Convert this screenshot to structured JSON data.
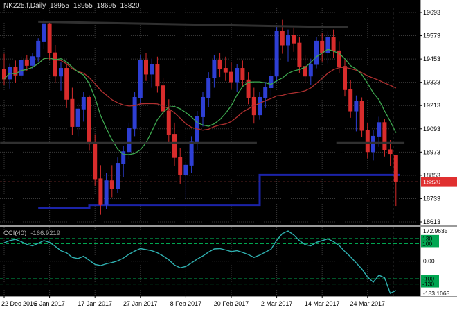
{
  "window": {
    "quote": {
      "symbol_period": "NK225.f,Daily",
      "open": "18955",
      "high": "18955",
      "low": "18695",
      "close": "18820"
    }
  },
  "indicator": {
    "name_label": "CCI(40)",
    "value_label": "-166.9219"
  },
  "colors": {
    "pane_bg": "#000000",
    "axis_bg": "#ffffff",
    "axis_text": "#000000",
    "grid": "#3a3a3a",
    "bull": "#2e3fd4",
    "bear": "#d82c2c",
    "ma_fast": "#3da84f",
    "ma_slow": "#b03030",
    "step_line": "#1b23a8",
    "trendline": "#303030",
    "cci_line": "#2fb0b0",
    "level_green": "#00a651",
    "price_tag_bg": "#e03030",
    "price_tag_text": "#ffffff",
    "separator": "#9a9a9a",
    "period_separator": "#7a7a7a",
    "bid_line": "#7a2e2e"
  },
  "price_axis": {
    "labels": [
      "19693",
      "19573",
      "19453",
      "19333",
      "19213",
      "19093",
      "18973",
      "18853",
      "18733",
      "18613"
    ],
    "current_price_label": "18820"
  },
  "time_axis": {
    "ticks": [
      {
        "bar": 0,
        "label": "22 Dec 2016"
      },
      {
        "bar": 8,
        "label": "5 Jan 2017"
      },
      {
        "bar": 16,
        "label": "17 Jan 2017"
      },
      {
        "bar": 24,
        "label": "27 Jan 2017"
      },
      {
        "bar": 32,
        "label": "8 Feb 2017"
      },
      {
        "bar": 40,
        "label": "20 Feb 2017"
      },
      {
        "bar": 48,
        "label": "2 Mar 2017"
      },
      {
        "bar": 56,
        "label": "14 Mar 2017"
      },
      {
        "bar": 64,
        "label": "24 Mar 2017"
      }
    ]
  },
  "cci_axis": {
    "max": "172.9635",
    "zero": "0.00",
    "min": "-183.1065",
    "level_labels": [
      {
        "value": 130,
        "label": "130"
      },
      {
        "value": 100,
        "label": "100"
      },
      {
        "value": -100,
        "label": "-100"
      },
      {
        "value": -130,
        "label": "-130"
      }
    ]
  },
  "chart_data": {
    "type": "candlestick",
    "title": "NK225.f Daily candlestick chart with two moving averages, step support line and CCI(40) indicator pane",
    "price_range": [
      18613,
      19693
    ],
    "candles": [
      [
        19400,
        19480,
        19320,
        19350
      ],
      [
        19350,
        19430,
        19300,
        19410
      ],
      [
        19410,
        19445,
        19330,
        19370
      ],
      [
        19370,
        19465,
        19345,
        19445
      ],
      [
        19445,
        19475,
        19390,
        19420
      ],
      [
        19420,
        19485,
        19400,
        19465
      ],
      [
        19465,
        19560,
        19440,
        19545
      ],
      [
        19545,
        19655,
        19505,
        19635
      ],
      [
        19635,
        19650,
        19450,
        19485
      ],
      [
        19485,
        19525,
        19330,
        19365
      ],
      [
        19365,
        19435,
        19290,
        19405
      ],
      [
        19405,
        19425,
        19200,
        19245
      ],
      [
        19245,
        19305,
        19060,
        19105
      ],
      [
        19105,
        19225,
        19055,
        19195
      ],
      [
        19195,
        19285,
        19130,
        19255
      ],
      [
        19255,
        19265,
        18980,
        19015
      ],
      [
        19015,
        19065,
        18800,
        18835
      ],
      [
        18835,
        18905,
        18650,
        18705
      ],
      [
        18705,
        18865,
        18680,
        18825
      ],
      [
        18825,
        18905,
        18740,
        18785
      ],
      [
        18785,
        18945,
        18760,
        18915
      ],
      [
        18915,
        19005,
        18845,
        18975
      ],
      [
        18975,
        19125,
        18935,
        19095
      ],
      [
        19095,
        19285,
        19055,
        19255
      ],
      [
        19255,
        19475,
        19215,
        19445
      ],
      [
        19445,
        19485,
        19340,
        19375
      ],
      [
        19375,
        19455,
        19305,
        19425
      ],
      [
        19425,
        19465,
        19280,
        19315
      ],
      [
        19315,
        19355,
        19150,
        19185
      ],
      [
        19185,
        19245,
        19020,
        19065
      ],
      [
        19065,
        19125,
        18900,
        18945
      ],
      [
        18945,
        18995,
        18810,
        18855
      ],
      [
        18855,
        18925,
        18730,
        18905
      ],
      [
        18905,
        19055,
        18865,
        19025
      ],
      [
        19025,
        19185,
        18985,
        19155
      ],
      [
        19155,
        19285,
        19105,
        19255
      ],
      [
        19255,
        19385,
        19205,
        19355
      ],
      [
        19355,
        19475,
        19305,
        19445
      ],
      [
        19445,
        19485,
        19360,
        19405
      ],
      [
        19405,
        19465,
        19340,
        19385
      ],
      [
        19385,
        19435,
        19300,
        19335
      ],
      [
        19335,
        19425,
        19285,
        19405
      ],
      [
        19405,
        19445,
        19310,
        19345
      ],
      [
        19345,
        19385,
        19220,
        19255
      ],
      [
        19255,
        19305,
        19120,
        19165
      ],
      [
        19165,
        19285,
        19140,
        19255
      ],
      [
        19255,
        19335,
        19200,
        19305
      ],
      [
        19305,
        19395,
        19260,
        19365
      ],
      [
        19365,
        19625,
        19335,
        19595
      ],
      [
        19595,
        19655,
        19480,
        19525
      ],
      [
        19525,
        19605,
        19440,
        19575
      ],
      [
        19575,
        19615,
        19490,
        19535
      ],
      [
        19535,
        19565,
        19380,
        19415
      ],
      [
        19415,
        19475,
        19330,
        19365
      ],
      [
        19365,
        19455,
        19320,
        19425
      ],
      [
        19425,
        19565,
        19405,
        19545
      ],
      [
        19545,
        19585,
        19440,
        19485
      ],
      [
        19485,
        19595,
        19430,
        19565
      ],
      [
        19565,
        19605,
        19460,
        19495
      ],
      [
        19495,
        19545,
        19380,
        19415
      ],
      [
        19415,
        19455,
        19260,
        19295
      ],
      [
        19295,
        19345,
        19150,
        19185
      ],
      [
        19185,
        19265,
        19080,
        19235
      ],
      [
        19235,
        19255,
        19050,
        19085
      ],
      [
        19085,
        19125,
        18940,
        18975
      ],
      [
        18975,
        19085,
        18930,
        19055
      ],
      [
        19055,
        19155,
        19000,
        19125
      ],
      [
        19125,
        19145,
        18950,
        18985
      ],
      [
        18985,
        19035,
        18900,
        18965
      ],
      [
        18955,
        18955,
        18695,
        18820
      ]
    ],
    "ma_fast_period": 10,
    "ma_slow_period": 25,
    "step_line_points": [
      [
        6,
        18685
      ],
      [
        15,
        18685
      ],
      [
        15,
        18700
      ],
      [
        45,
        18700
      ],
      [
        45,
        18855
      ],
      [
        69.7,
        18855
      ]
    ],
    "trendlines": [
      [
        6,
        19645,
        60.5,
        19616
      ],
      [
        -0.7,
        19020,
        44.5,
        19020
      ],
      [
        58.5,
        19020,
        70.5,
        19020
      ]
    ],
    "current_price": 18820,
    "period_separator_bar": 68.5,
    "cci": {
      "period": 40,
      "scale": [
        -183.1065,
        172.9635
      ],
      "levels": [
        130,
        100,
        -100,
        -130
      ],
      "values": [
        105,
        118,
        125,
        112,
        96,
        88,
        102,
        118,
        108,
        85,
        60,
        48,
        22,
        15,
        28,
        5,
        -18,
        -25,
        -15,
        -8,
        2,
        18,
        40,
        58,
        72,
        66,
        60,
        48,
        30,
        8,
        -22,
        -38,
        -30,
        -10,
        12,
        30,
        52,
        70,
        72,
        64,
        55,
        60,
        50,
        38,
        22,
        35,
        52,
        68,
        120,
        158,
        172.9635,
        150,
        118,
        95,
        88,
        108,
        118,
        128,
        112,
        90,
        55,
        25,
        -10,
        -45,
        -90,
        -120,
        -80,
        -95,
        -183.1065,
        -166.9219
      ]
    }
  }
}
